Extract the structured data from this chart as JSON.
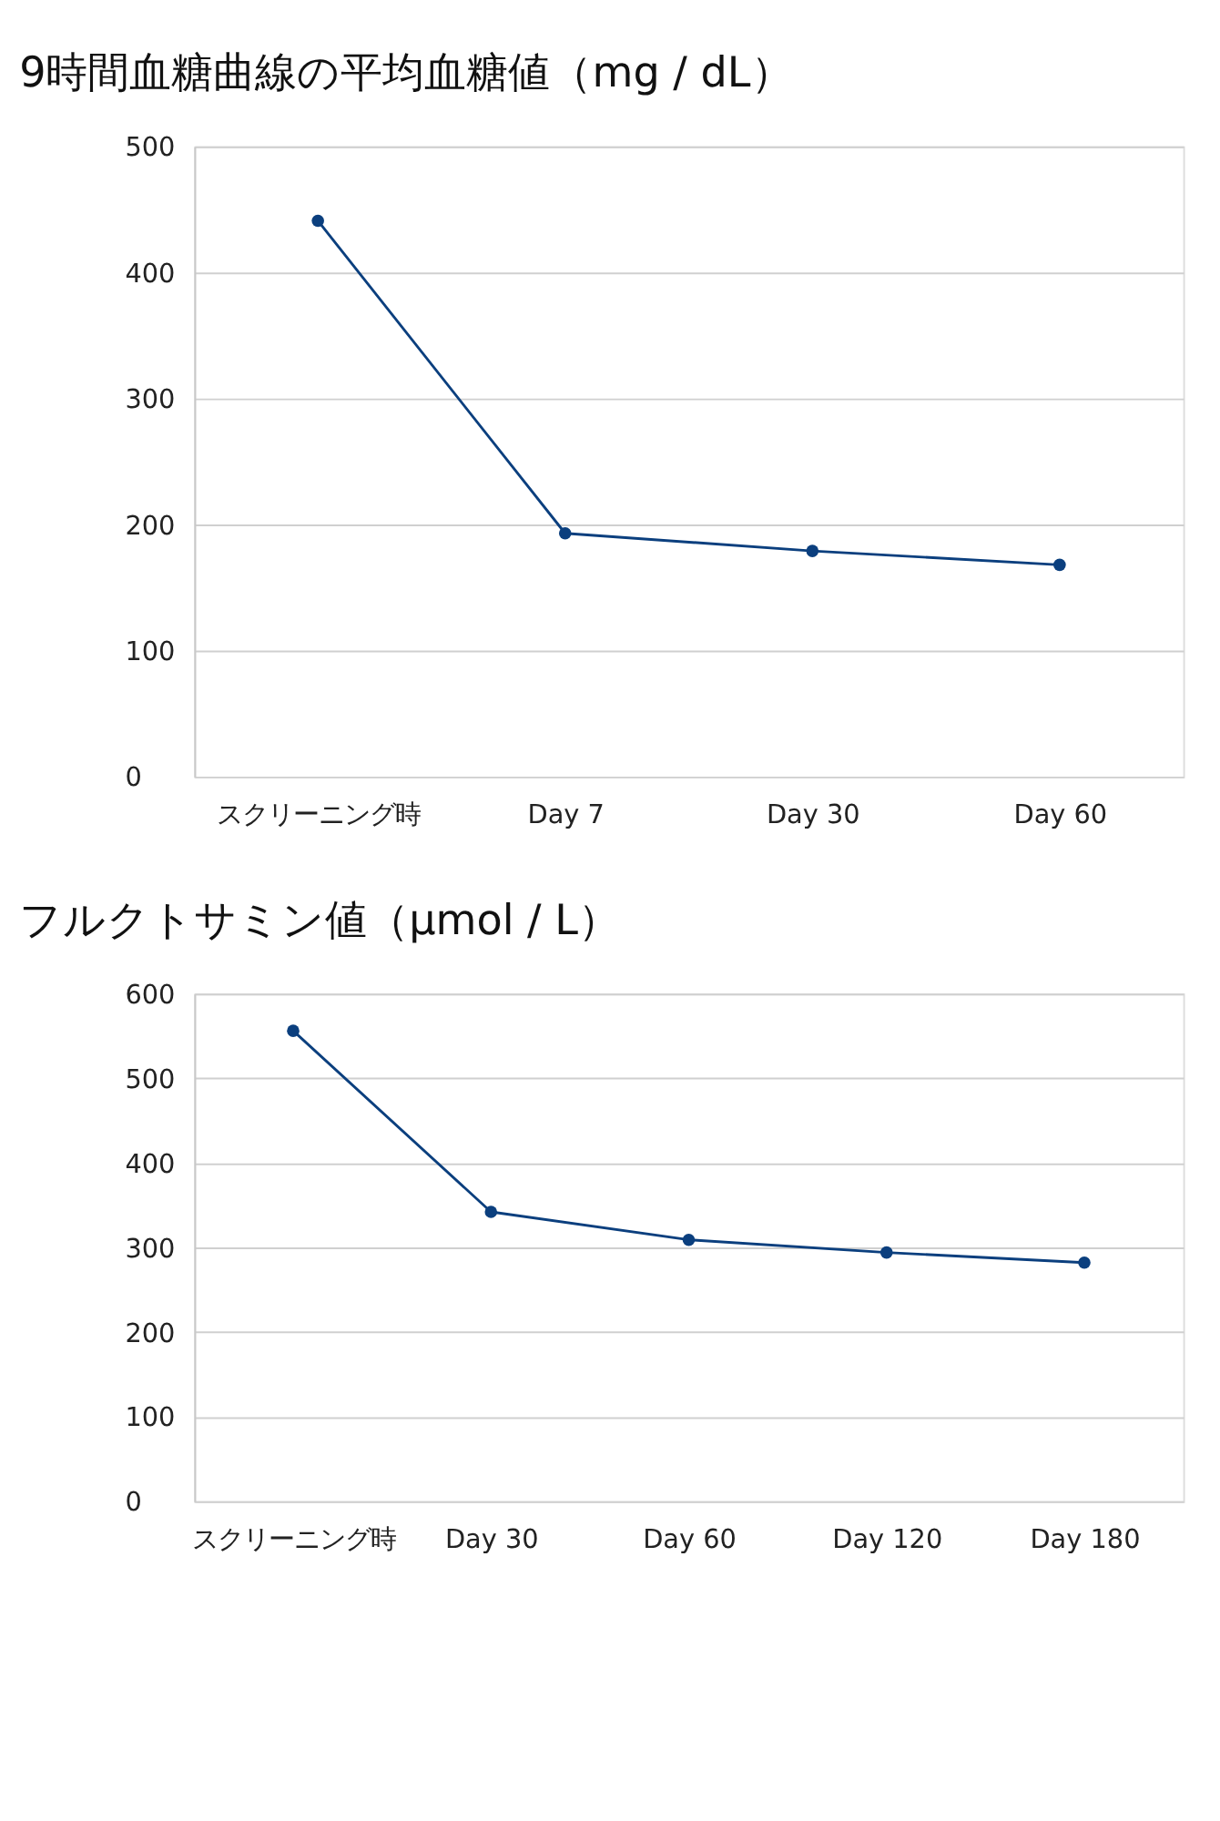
{
  "chart_data": [
    {
      "type": "line",
      "title": "9時間血糖曲線の平均血糖値（mg / dL）",
      "categories": [
        "スクリーニング時",
        "Day 7",
        "Day 30",
        "Day 60"
      ],
      "series": [
        {
          "color": "#0b3f7e",
          "values": [
            441,
            193,
            179,
            168
          ]
        }
      ],
      "ylim": [
        0,
        500
      ],
      "yticks": [
        0,
        100,
        200,
        300,
        400,
        500
      ],
      "grid": "y",
      "marker": "circle",
      "line_style": "solid"
    },
    {
      "type": "line",
      "title": "フルクトサミン値（µmol / L）",
      "categories": [
        "スクリーニング時",
        "Day 30",
        "Day 60",
        "Day 120",
        "Day 180"
      ],
      "series": [
        {
          "color": "#0b3f7e",
          "values": [
            556,
            342,
            309,
            294,
            282
          ]
        }
      ],
      "ylim": [
        0,
        600
      ],
      "yticks": [
        0,
        100,
        200,
        300,
        400,
        500,
        600
      ],
      "grid": "y",
      "marker": "circle",
      "line_style": "solid"
    }
  ]
}
